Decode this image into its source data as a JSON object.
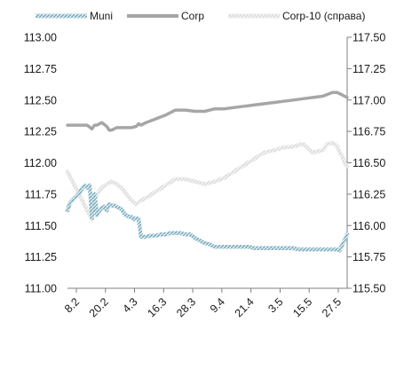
{
  "chart_data": {
    "type": "line",
    "title": "",
    "legend": {
      "placement": "top",
      "entries": [
        "Muni",
        "Corp",
        "Corp-10 (справа)"
      ]
    },
    "x_ticks": [
      "8.2",
      "20.2",
      "4.3",
      "16.3",
      "28.3",
      "9.4",
      "21.4",
      "3.5",
      "15.5",
      "27.5"
    ],
    "y_left": {
      "min": 111.0,
      "max": 113.0,
      "ticks": [
        "111.00",
        "111.25",
        "111.50",
        "111.75",
        "112.00",
        "112.25",
        "112.50",
        "112.75",
        "113.00"
      ]
    },
    "y_right": {
      "min": 115.5,
      "max": 117.5,
      "ticks": [
        "115.50",
        "115.75",
        "116.00",
        "116.25",
        "116.50",
        "116.75",
        "117.00",
        "117.25",
        "117.50"
      ]
    },
    "grid": false,
    "series": [
      {
        "name": "Muni",
        "axis": "left",
        "color": "#8fb8c7",
        "style": "hatched",
        "x": [
          0,
          1,
          2,
          3,
          4,
          5,
          6,
          7,
          8,
          9,
          10,
          11,
          12,
          13,
          14,
          15,
          16,
          17,
          18,
          19,
          20,
          21,
          22,
          23,
          24,
          25,
          26,
          27,
          28,
          29,
          30,
          32,
          34,
          36,
          38,
          40,
          42,
          44,
          46,
          48,
          50,
          52,
          54,
          56,
          58,
          60,
          62,
          64,
          66,
          68,
          70,
          72,
          74,
          76,
          78,
          80,
          82,
          84,
          86,
          88,
          90,
          92,
          94,
          96,
          98,
          100,
          102,
          104,
          106,
          108,
          110,
          111,
          112,
          113,
          114
        ],
        "values": [
          111.62,
          111.68,
          111.7,
          111.72,
          111.74,
          111.76,
          111.8,
          111.82,
          111.8,
          111.82,
          111.56,
          111.75,
          111.58,
          111.62,
          111.64,
          111.65,
          111.62,
          111.67,
          111.66,
          111.66,
          111.65,
          111.64,
          111.63,
          111.6,
          111.58,
          111.57,
          111.57,
          111.55,
          111.56,
          111.55,
          111.41,
          111.41,
          111.42,
          111.42,
          111.43,
          111.43,
          111.44,
          111.44,
          111.44,
          111.43,
          111.43,
          111.4,
          111.38,
          111.36,
          111.35,
          111.33,
          111.33,
          111.33,
          111.33,
          111.33,
          111.33,
          111.33,
          111.33,
          111.32,
          111.32,
          111.32,
          111.32,
          111.32,
          111.32,
          111.32,
          111.32,
          111.32,
          111.31,
          111.31,
          111.31,
          111.31,
          111.31,
          111.31,
          111.31,
          111.31,
          111.31,
          111.3,
          111.35,
          111.38,
          111.43
        ]
      },
      {
        "name": "Corp",
        "axis": "left",
        "color": "#a6a6a6",
        "style": "solid",
        "x": [
          0,
          4,
          8,
          10,
          11,
          12,
          14,
          16,
          17,
          18,
          20,
          22,
          24,
          26,
          28,
          29,
          30,
          32,
          36,
          40,
          44,
          48,
          52,
          56,
          60,
          64,
          68,
          72,
          76,
          80,
          84,
          88,
          92,
          96,
          100,
          104,
          108,
          110,
          111,
          112,
          113,
          114
        ],
        "values": [
          112.3,
          112.3,
          112.3,
          112.27,
          112.3,
          112.3,
          112.32,
          112.29,
          112.26,
          112.26,
          112.28,
          112.28,
          112.28,
          112.28,
          112.29,
          112.31,
          112.3,
          112.32,
          112.35,
          112.38,
          112.42,
          112.42,
          112.41,
          112.41,
          112.43,
          112.43,
          112.44,
          112.45,
          112.46,
          112.47,
          112.48,
          112.49,
          112.5,
          112.51,
          112.52,
          112.53,
          112.56,
          112.56,
          112.55,
          112.54,
          112.53,
          112.52
        ]
      },
      {
        "name": "Corp-10 (справа)",
        "axis": "right",
        "color": "#e2e2e2",
        "style": "hatched",
        "x": [
          0,
          2,
          4,
          6,
          8,
          10,
          11,
          12,
          14,
          16,
          18,
          20,
          22,
          24,
          26,
          28,
          30,
          32,
          36,
          40,
          44,
          48,
          52,
          56,
          60,
          64,
          68,
          72,
          76,
          80,
          84,
          88,
          92,
          96,
          100,
          104,
          106,
          108,
          110,
          111,
          112,
          113,
          114
        ],
        "values": [
          116.43,
          116.35,
          116.28,
          116.2,
          116.12,
          116.05,
          116.2,
          116.25,
          116.3,
          116.33,
          116.35,
          116.33,
          116.3,
          116.25,
          116.2,
          116.17,
          116.2,
          116.22,
          116.27,
          116.32,
          116.37,
          116.37,
          116.35,
          116.33,
          116.35,
          116.38,
          116.43,
          116.48,
          116.53,
          116.58,
          116.6,
          116.62,
          116.63,
          116.65,
          116.58,
          116.6,
          116.65,
          116.66,
          116.63,
          116.58,
          116.55,
          116.5,
          116.47
        ]
      }
    ]
  }
}
